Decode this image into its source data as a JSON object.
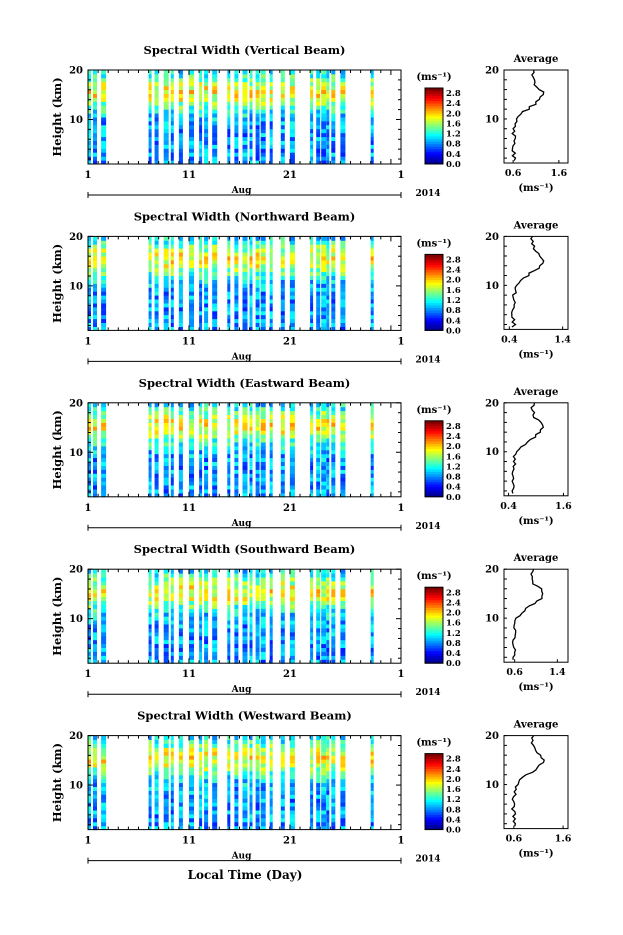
{
  "figure": {
    "shared_xlabel": "Local Time (Day)",
    "avg_title": "Average",
    "cbar_unit_label": "(ms⁻¹)",
    "avg_unit_label": "(ms⁻¹)",
    "month_label": "Aug",
    "year_label": "2014"
  },
  "chart_data": [
    {
      "type": "heatmap",
      "title": "Spectral Width (Vertical Beam)",
      "ylabel": "Height (km)",
      "x_ticks": [
        "1",
        "11",
        "21",
        "1"
      ],
      "x_range_days": [
        1,
        32
      ],
      "y_ticks": [
        10,
        20
      ],
      "ylim": [
        1,
        20
      ],
      "colorbar": {
        "ticks": [
          "0.0",
          "0.4",
          "0.8",
          "1.2",
          "1.6",
          "2.0",
          "2.4",
          "2.8"
        ],
        "range": [
          0,
          3.0
        ]
      },
      "average_profile": {
        "x_ticks": [
          "0.6",
          "1.6"
        ],
        "xlim": [
          0.4,
          1.8
        ]
      },
      "observation_days": [
        1,
        1.5,
        2.3,
        7,
        7.6,
        8.5,
        9.2,
        10,
        11,
        12,
        12.5,
        13.3,
        14.8,
        15.5,
        16.3,
        17,
        17.6,
        18.1,
        19,
        20.1,
        21,
        23,
        23.6,
        24.1,
        24.6,
        25.1,
        26,
        29
      ]
    },
    {
      "type": "heatmap",
      "title": "Spectral Width (Northward Beam)",
      "ylabel": "Height (km)",
      "x_ticks": [
        "1",
        "11",
        "21",
        "1"
      ],
      "x_range_days": [
        1,
        32
      ],
      "y_ticks": [
        10,
        20
      ],
      "ylim": [
        1,
        20
      ],
      "colorbar": {
        "ticks": [
          "0.0",
          "0.4",
          "0.8",
          "1.2",
          "1.6",
          "2.0",
          "2.4",
          "2.8"
        ],
        "range": [
          0,
          3.0
        ]
      },
      "average_profile": {
        "x_ticks": [
          "0.4",
          "1.4"
        ],
        "xlim": [
          0.3,
          1.5
        ]
      },
      "observation_days": [
        1,
        1.5,
        2.3,
        7,
        7.6,
        8.5,
        9.2,
        10,
        11,
        12,
        12.5,
        13.3,
        14.8,
        15.5,
        16.3,
        17,
        17.6,
        18.1,
        19,
        20.1,
        21,
        23,
        23.6,
        24.1,
        24.6,
        25.1,
        26,
        29
      ]
    },
    {
      "type": "heatmap",
      "title": "Spectral Width (Eastward Beam)",
      "ylabel": "Height (km)",
      "x_ticks": [
        "1",
        "11",
        "21",
        "1"
      ],
      "x_range_days": [
        1,
        32
      ],
      "y_ticks": [
        10,
        20
      ],
      "ylim": [
        1,
        20
      ],
      "colorbar": {
        "ticks": [
          "0.0",
          "0.4",
          "0.8",
          "1.2",
          "1.6",
          "2.0",
          "2.4",
          "2.8"
        ],
        "range": [
          0,
          3.0
        ]
      },
      "average_profile": {
        "x_ticks": [
          "0.4",
          "1.6"
        ],
        "xlim": [
          0.3,
          1.7
        ]
      },
      "observation_days": [
        1,
        1.5,
        2.3,
        7,
        7.6,
        8.5,
        9.2,
        10,
        11,
        12,
        12.5,
        13.3,
        14.8,
        15.5,
        16.3,
        17,
        17.6,
        18.1,
        19,
        20.1,
        21,
        23,
        23.6,
        24.1,
        24.6,
        25.1,
        26,
        29
      ]
    },
    {
      "type": "heatmap",
      "title": "Spectral Width (Southward Beam)",
      "ylabel": "Height (km)",
      "x_ticks": [
        "1",
        "11",
        "21",
        "1"
      ],
      "x_range_days": [
        1,
        32
      ],
      "y_ticks": [
        10,
        20
      ],
      "ylim": [
        1,
        20
      ],
      "colorbar": {
        "ticks": [
          "0.0",
          "0.4",
          "0.8",
          "1.2",
          "1.6",
          "2.0",
          "2.4",
          "2.8"
        ],
        "range": [
          0,
          3.0
        ]
      },
      "average_profile": {
        "x_ticks": [
          "0.6",
          "1.4"
        ],
        "xlim": [
          0.4,
          1.6
        ]
      },
      "observation_days": [
        1,
        1.5,
        2.3,
        7,
        7.6,
        8.5,
        9.2,
        10,
        11,
        12,
        12.5,
        13.3,
        14.8,
        15.5,
        16.3,
        17,
        17.6,
        18.1,
        19,
        20.1,
        21,
        23,
        23.6,
        24.1,
        24.6,
        25.1,
        26,
        29
      ]
    },
    {
      "type": "heatmap",
      "title": "Spectral Width (Westward Beam)",
      "ylabel": "Height (km)",
      "x_ticks": [
        "1",
        "11",
        "21",
        "1"
      ],
      "x_range_days": [
        1,
        32
      ],
      "y_ticks": [
        10,
        20
      ],
      "ylim": [
        1,
        20
      ],
      "colorbar": {
        "ticks": [
          "0.0",
          "0.4",
          "0.8",
          "1.2",
          "1.6",
          "2.0",
          "2.4",
          "2.8"
        ],
        "range": [
          0,
          3.0
        ]
      },
      "average_profile": {
        "x_ticks": [
          "0.6",
          "1.6"
        ],
        "xlim": [
          0.4,
          1.7
        ]
      },
      "observation_days": [
        1,
        1.5,
        2.3,
        7,
        7.6,
        8.5,
        9.2,
        10,
        11,
        12,
        12.5,
        13.3,
        14.8,
        15.5,
        16.3,
        17,
        17.6,
        18.1,
        19,
        20.1,
        21,
        23,
        23.6,
        24.1,
        24.6,
        25.1,
        26,
        29
      ]
    }
  ]
}
